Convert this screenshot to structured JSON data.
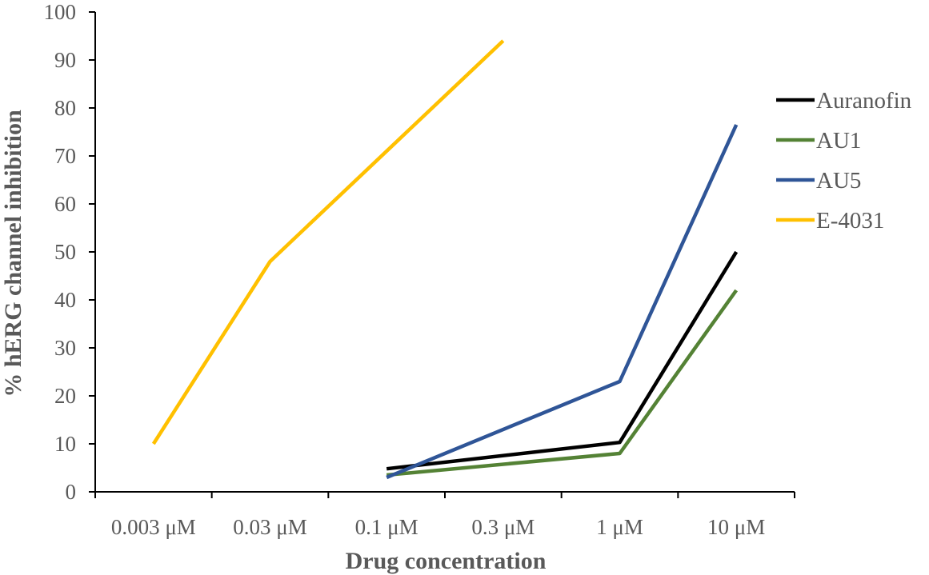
{
  "chart_data": {
    "type": "line",
    "title": "",
    "xlabel": "Drug concentration",
    "ylabel": "% hERG channel inhibition",
    "categories": [
      "0.003 μM",
      "0.03 μM",
      "0.1 μM",
      "0.3 μM",
      "1 μM",
      "10 μM"
    ],
    "ylim": [
      0,
      100
    ],
    "yticks": [
      0,
      10,
      20,
      30,
      40,
      50,
      60,
      70,
      80,
      90,
      100
    ],
    "grid": false,
    "legend_position": "right",
    "series": [
      {
        "name": "Auranofin",
        "color": "#000000",
        "values": [
          null,
          null,
          4.8,
          null,
          10.3,
          50
        ]
      },
      {
        "name": "AU1",
        "color": "#548235",
        "values": [
          null,
          null,
          3.5,
          null,
          8,
          42
        ]
      },
      {
        "name": "AU5",
        "color": "#2F5597",
        "values": [
          null,
          null,
          3,
          null,
          23,
          76.5
        ]
      },
      {
        "name": "E-4031",
        "color": "#FFC000",
        "values": [
          10,
          48,
          null,
          94,
          null,
          null
        ]
      }
    ]
  }
}
